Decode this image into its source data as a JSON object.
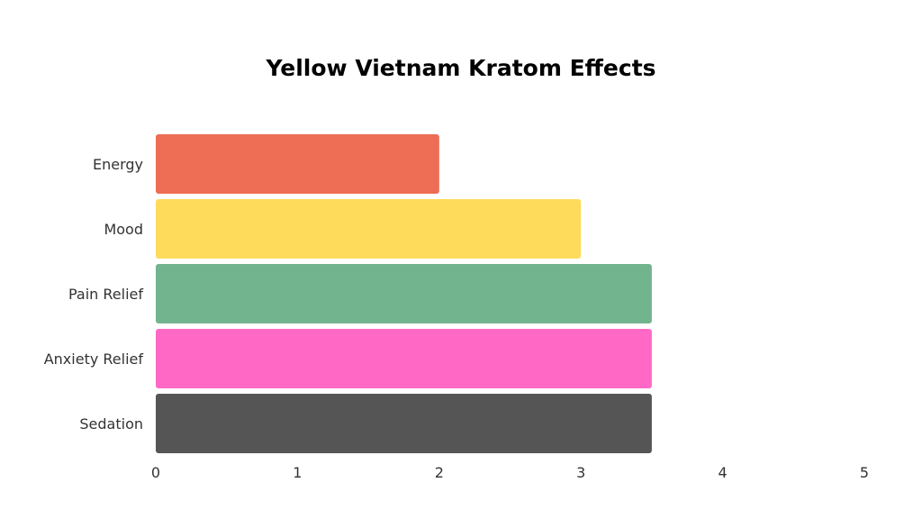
{
  "chart_data": {
    "type": "bar",
    "orientation": "horizontal",
    "title": "Yellow Vietnam Kratom Effects",
    "xlabel": "",
    "ylabel": "",
    "categories": [
      "Energy",
      "Mood",
      "Pain Relief",
      "Anxiety Relief",
      "Sedation"
    ],
    "values": [
      2,
      3,
      3.5,
      3.5,
      3.5
    ],
    "colors": [
      "#ED6E55",
      "#FFDB5C",
      "#72B48E",
      "#FF69C5",
      "#555555"
    ],
    "xlim": [
      0,
      5
    ],
    "xticks": [
      "0",
      "1",
      "2",
      "3",
      "4",
      "5"
    ],
    "grid": false,
    "legend": "none"
  }
}
